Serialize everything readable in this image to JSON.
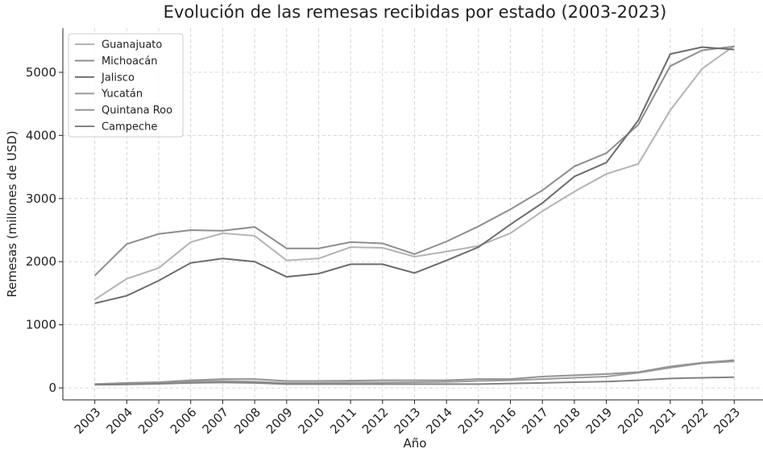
{
  "chart_data": {
    "type": "line",
    "title": "Evolución de las remesas recibidas por estado (2003-2023)",
    "xlabel": "Año",
    "ylabel": "Remesas (millones de USD)",
    "x": [
      2003,
      2004,
      2005,
      2006,
      2007,
      2008,
      2009,
      2010,
      2011,
      2012,
      2013,
      2014,
      2015,
      2016,
      2017,
      2018,
      2019,
      2020,
      2021,
      2022,
      2023
    ],
    "xlim": [
      2002,
      2023.9
    ],
    "xticks": [
      2003,
      2004,
      2005,
      2006,
      2007,
      2008,
      2009,
      2010,
      2011,
      2012,
      2013,
      2014,
      2015,
      2016,
      2017,
      2018,
      2019,
      2020,
      2021,
      2022,
      2023
    ],
    "ylim": [
      -190,
      5700
    ],
    "yticks": [
      0,
      1000,
      2000,
      3000,
      4000,
      5000
    ],
    "grid": true,
    "legend": "upper left",
    "series": [
      {
        "name": "Guanajuato",
        "color": "#b3b3b3",
        "values": [
          1400,
          1730,
          1900,
          2310,
          2450,
          2410,
          2020,
          2050,
          2230,
          2220,
          2080,
          2160,
          2250,
          2450,
          2800,
          3110,
          3390,
          3550,
          4400,
          5060,
          5420
        ]
      },
      {
        "name": "Michoacán",
        "color": "#8e8e8e",
        "values": [
          1780,
          2280,
          2440,
          2500,
          2490,
          2550,
          2210,
          2210,
          2310,
          2290,
          2120,
          2320,
          2560,
          2830,
          3130,
          3510,
          3720,
          4170,
          5100,
          5350,
          5410
        ]
      },
      {
        "name": "Jalisco",
        "color": "#6c6c6c",
        "values": [
          1340,
          1460,
          1700,
          1980,
          2050,
          2000,
          1760,
          1810,
          1960,
          1960,
          1820,
          2020,
          2230,
          2590,
          2930,
          3350,
          3570,
          4240,
          5290,
          5400,
          5360
        ]
      },
      {
        "name": "Yucatán",
        "color": "#9c9c9c",
        "values": [
          60,
          70,
          80,
          100,
          110,
          100,
          80,
          80,
          85,
          85,
          90,
          95,
          110,
          120,
          140,
          160,
          180,
          240,
          320,
          390,
          420
        ]
      },
      {
        "name": "Quintana Roo",
        "color": "#939393",
        "values": [
          60,
          80,
          90,
          120,
          140,
          140,
          110,
          110,
          115,
          120,
          120,
          120,
          140,
          140,
          180,
          200,
          220,
          250,
          340,
          400,
          440
        ]
      },
      {
        "name": "Campeche",
        "color": "#828282",
        "values": [
          50,
          55,
          65,
          80,
          85,
          80,
          60,
          60,
          60,
          60,
          60,
          60,
          60,
          70,
          80,
          90,
          100,
          120,
          150,
          160,
          170
        ]
      }
    ]
  }
}
